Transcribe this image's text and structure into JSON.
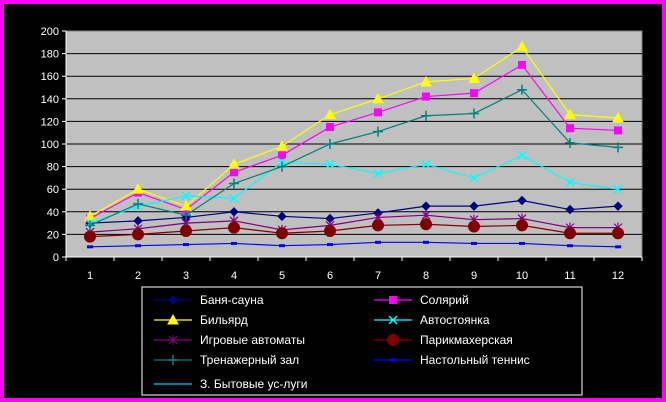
{
  "chart_data": {
    "type": "line",
    "title": "",
    "xlabel": "",
    "ylabel": "",
    "categories": [
      "1",
      "2",
      "3",
      "4",
      "5",
      "6",
      "7",
      "8",
      "9",
      "10",
      "11",
      "12"
    ],
    "ylim": [
      0,
      200
    ],
    "yticks": [
      "0",
      "20",
      "40",
      "60",
      "80",
      "100",
      "120",
      "140",
      "160",
      "180",
      "200"
    ],
    "grid": true,
    "legend_position": "bottom",
    "series": [
      {
        "name": "Баня-сауна",
        "color": "#000080",
        "marker": "diamond",
        "values": [
          30,
          32,
          35,
          40,
          36,
          34,
          39,
          45,
          45,
          50,
          42,
          45
        ]
      },
      {
        "name": "Солярий",
        "color": "#ff00ff",
        "marker": "square",
        "values": [
          34,
          57,
          42,
          75,
          90,
          115,
          128,
          142,
          145,
          170,
          114,
          112
        ]
      },
      {
        "name": "Бильярд",
        "color": "#ffff00",
        "marker": "triangle",
        "values": [
          36,
          60,
          45,
          82,
          98,
          126,
          140,
          155,
          158,
          186,
          126,
          123
        ]
      },
      {
        "name": "Автостоянка",
        "color": "#00ffff",
        "marker": "x",
        "values": [
          30,
          45,
          54,
          52,
          84,
          82,
          74,
          82,
          70,
          90,
          66,
          60
        ]
      },
      {
        "name": "Игровые автоматы",
        "color": "#800080",
        "marker": "star",
        "values": [
          22,
          25,
          30,
          32,
          24,
          28,
          35,
          37,
          33,
          34,
          26,
          26
        ]
      },
      {
        "name": "Парикмахерская",
        "color": "#800000",
        "marker": "circle",
        "values": [
          18,
          20,
          23,
          26,
          21,
          23,
          28,
          29,
          27,
          28,
          21,
          21
        ]
      },
      {
        "name": "Тренажерный зал",
        "color": "#008080",
        "marker": "plus",
        "values": [
          28,
          47,
          37,
          65,
          80,
          100,
          111,
          125,
          127,
          148,
          101,
          97
        ]
      },
      {
        "name": "Настольный теннис",
        "color": "#0000ff",
        "marker": "dash",
        "values": [
          9,
          10,
          11,
          12,
          10,
          11,
          13,
          13,
          12,
          12,
          10,
          9
        ]
      },
      {
        "name": "З. Бытовые ус-луги",
        "color": "#00ccff",
        "marker": "none",
        "values": [
          null,
          null,
          null,
          null,
          null,
          null,
          null,
          null,
          null,
          null,
          null,
          null
        ]
      }
    ]
  }
}
